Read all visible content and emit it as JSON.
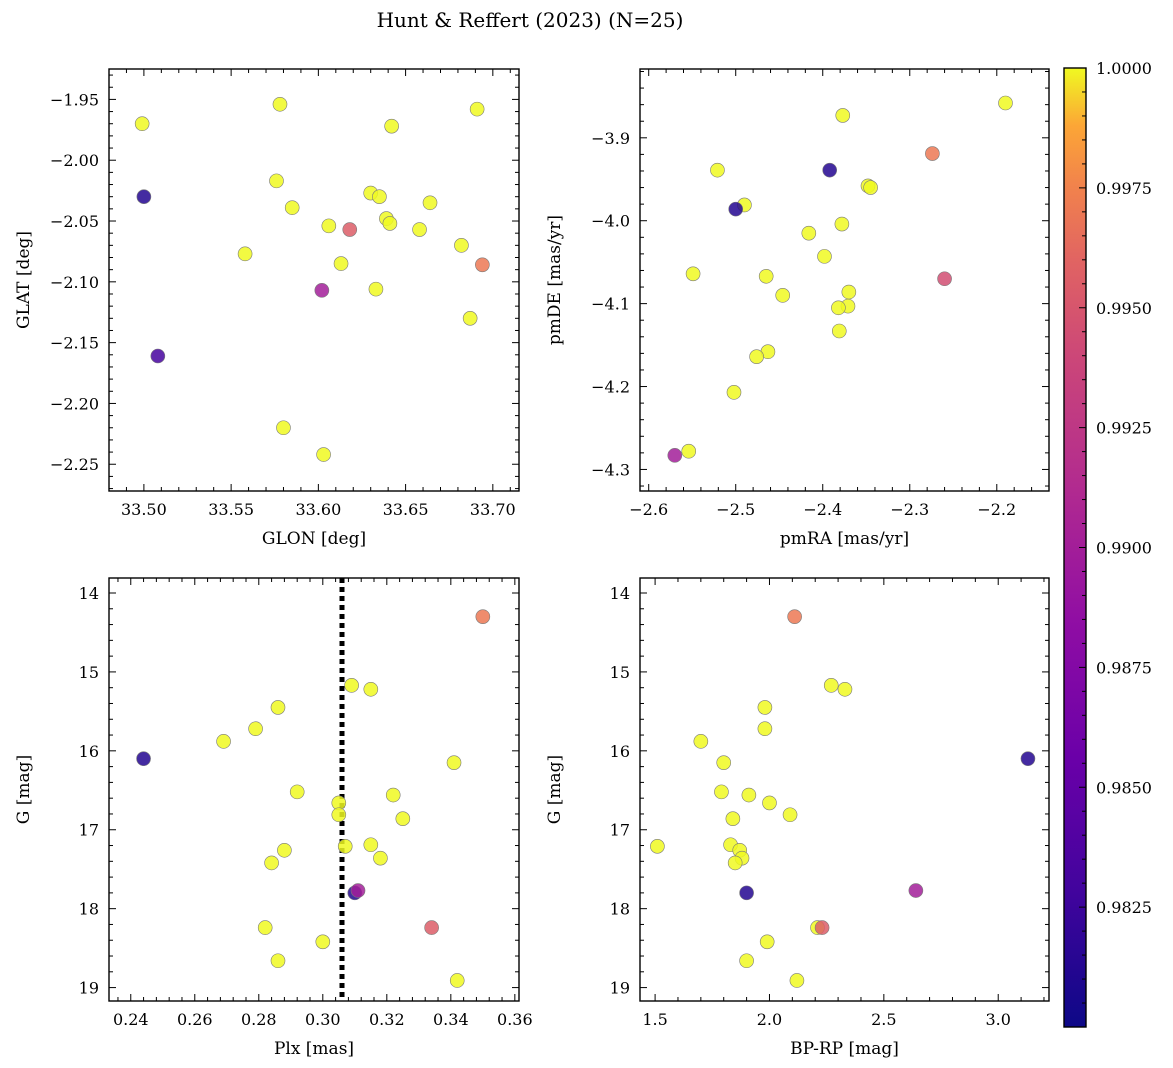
{
  "title": "Hunt & Reffert (2023) (N=25)",
  "colorbar": {
    "min": 0.98,
    "max": 1.0,
    "ticks": [
      0.9825,
      0.985,
      0.9875,
      0.99,
      0.9925,
      0.995,
      0.9975,
      1.0
    ],
    "tick_labels": [
      "0.9825",
      "0.9850",
      "0.9875",
      "0.9900",
      "0.9925",
      "0.9950",
      "0.9975",
      "1.0000"
    ],
    "colormap": "plasma"
  },
  "chart_data": [
    {
      "type": "scatter",
      "xlabel": "GLON [deg]",
      "ylabel": "GLAT [deg]",
      "xlim": [
        33.48,
        33.715
      ],
      "ylim": [
        -2.272,
        -1.925
      ],
      "x_ticks": [
        33.5,
        33.55,
        33.6,
        33.65,
        33.7
      ],
      "x_tick_labels": [
        "33.50",
        "33.55",
        "33.60",
        "33.65",
        "33.70"
      ],
      "y_ticks": [
        -1.95,
        -2.0,
        -2.05,
        -2.1,
        -2.15,
        -2.2,
        -2.25
      ],
      "y_tick_labels": [
        "−1.95",
        "−2.00",
        "−2.05",
        "−2.10",
        "−2.15",
        "−2.20",
        "−2.25"
      ],
      "points": [
        {
          "x": 33.499,
          "y": -1.97,
          "c": 1.0
        },
        {
          "x": 33.5,
          "y": -2.03,
          "c": 0.9812
        },
        {
          "x": 33.508,
          "y": -2.161,
          "c": 0.9832
        },
        {
          "x": 33.558,
          "y": -2.077,
          "c": 1.0
        },
        {
          "x": 33.576,
          "y": -2.017,
          "c": 1.0
        },
        {
          "x": 33.578,
          "y": -1.954,
          "c": 1.0
        },
        {
          "x": 33.58,
          "y": -2.22,
          "c": 1.0
        },
        {
          "x": 33.585,
          "y": -2.039,
          "c": 1.0
        },
        {
          "x": 33.602,
          "y": -2.107,
          "c": 0.99
        },
        {
          "x": 33.603,
          "y": -2.242,
          "c": 1.0
        },
        {
          "x": 33.606,
          "y": -2.054,
          "c": 1.0
        },
        {
          "x": 33.613,
          "y": -2.085,
          "c": 1.0
        },
        {
          "x": 33.618,
          "y": -2.057,
          "c": 0.9955
        },
        {
          "x": 33.63,
          "y": -2.027,
          "c": 1.0
        },
        {
          "x": 33.633,
          "y": -2.106,
          "c": 1.0
        },
        {
          "x": 33.635,
          "y": -2.03,
          "c": 1.0
        },
        {
          "x": 33.639,
          "y": -2.048,
          "c": 1.0
        },
        {
          "x": 33.641,
          "y": -2.052,
          "c": 1.0
        },
        {
          "x": 33.642,
          "y": -1.972,
          "c": 1.0
        },
        {
          "x": 33.658,
          "y": -2.057,
          "c": 1.0
        },
        {
          "x": 33.664,
          "y": -2.035,
          "c": 1.0
        },
        {
          "x": 33.682,
          "y": -2.07,
          "c": 1.0
        },
        {
          "x": 33.687,
          "y": -2.13,
          "c": 1.0
        },
        {
          "x": 33.691,
          "y": -1.958,
          "c": 1.0
        },
        {
          "x": 33.694,
          "y": -2.086,
          "c": 0.997
        }
      ]
    },
    {
      "type": "scatter",
      "xlabel": "pmRA [mas/yr]",
      "ylabel": "pmDE [mas/yr]",
      "xlim": [
        -2.61,
        -2.14
      ],
      "ylim": [
        -4.326,
        -3.817
      ],
      "x_ticks": [
        -2.6,
        -2.5,
        -2.4,
        -2.3,
        -2.2
      ],
      "x_tick_labels": [
        "−2.6",
        "−2.5",
        "−2.4",
        "−2.3",
        "−2.2"
      ],
      "y_ticks": [
        -3.9,
        -4.0,
        -4.1,
        -4.2,
        -4.3
      ],
      "y_tick_labels": [
        "−3.9",
        "−4.0",
        "−4.1",
        "−4.2",
        "−4.3"
      ],
      "points": [
        {
          "x": -2.19,
          "y": -3.858,
          "c": 1.0
        },
        {
          "x": -2.274,
          "y": -3.919,
          "c": 0.997
        },
        {
          "x": -2.26,
          "y": -4.07,
          "c": 0.9945
        },
        {
          "x": -2.377,
          "y": -3.873,
          "c": 1.0
        },
        {
          "x": -2.392,
          "y": -3.939,
          "c": 0.9812
        },
        {
          "x": -2.348,
          "y": -3.958,
          "c": 1.0
        },
        {
          "x": -2.345,
          "y": -3.96,
          "c": 1.0
        },
        {
          "x": -2.378,
          "y": -4.004,
          "c": 1.0
        },
        {
          "x": -2.416,
          "y": -4.015,
          "c": 1.0
        },
        {
          "x": -2.398,
          "y": -4.043,
          "c": 1.0
        },
        {
          "x": -2.37,
          "y": -4.086,
          "c": 1.0
        },
        {
          "x": -2.371,
          "y": -4.103,
          "c": 1.0
        },
        {
          "x": -2.382,
          "y": -4.105,
          "c": 1.0
        },
        {
          "x": -2.381,
          "y": -4.133,
          "c": 1.0
        },
        {
          "x": -2.521,
          "y": -3.939,
          "c": 1.0
        },
        {
          "x": -2.49,
          "y": -3.981,
          "c": 1.0
        },
        {
          "x": -2.5,
          "y": -3.986,
          "c": 0.9812
        },
        {
          "x": -2.549,
          "y": -4.064,
          "c": 1.0
        },
        {
          "x": -2.465,
          "y": -4.067,
          "c": 1.0
        },
        {
          "x": -2.446,
          "y": -4.09,
          "c": 1.0
        },
        {
          "x": -2.463,
          "y": -4.158,
          "c": 1.0
        },
        {
          "x": -2.476,
          "y": -4.164,
          "c": 1.0
        },
        {
          "x": -2.502,
          "y": -4.207,
          "c": 1.0
        },
        {
          "x": -2.554,
          "y": -4.278,
          "c": 1.0
        },
        {
          "x": -2.57,
          "y": -4.283,
          "c": 0.99
        }
      ]
    },
    {
      "type": "scatter",
      "xlabel": "Plx [mas]",
      "ylabel": "G [mag]",
      "xlim": [
        0.2332,
        0.3613
      ],
      "ylim": [
        19.17,
        13.81
      ],
      "y_inverted": true,
      "x_ticks": [
        0.24,
        0.26,
        0.28,
        0.3,
        0.32,
        0.34,
        0.36
      ],
      "x_tick_labels": [
        "0.24",
        "0.26",
        "0.28",
        "0.30",
        "0.32",
        "0.34",
        "0.36"
      ],
      "y_ticks": [
        14,
        15,
        16,
        17,
        18,
        19
      ],
      "y_tick_labels": [
        "14",
        "15",
        "16",
        "17",
        "18",
        "19"
      ],
      "vline": {
        "x": 0.306,
        "style": "dotted",
        "color": "#000000"
      },
      "points": [
        {
          "x": 0.35,
          "y": 14.3,
          "c": 0.997
        },
        {
          "x": 0.244,
          "y": 16.1,
          "c": 0.9812
        },
        {
          "x": 0.269,
          "y": 15.88,
          "c": 1.0
        },
        {
          "x": 0.279,
          "y": 15.72,
          "c": 1.0
        },
        {
          "x": 0.286,
          "y": 15.45,
          "c": 1.0
        },
        {
          "x": 0.292,
          "y": 16.52,
          "c": 1.0
        },
        {
          "x": 0.309,
          "y": 15.17,
          "c": 1.0
        },
        {
          "x": 0.315,
          "y": 15.22,
          "c": 1.0
        },
        {
          "x": 0.341,
          "y": 16.15,
          "c": 1.0
        },
        {
          "x": 0.322,
          "y": 16.56,
          "c": 1.0
        },
        {
          "x": 0.305,
          "y": 16.66,
          "c": 1.0
        },
        {
          "x": 0.305,
          "y": 16.81,
          "c": 1.0
        },
        {
          "x": 0.325,
          "y": 16.86,
          "c": 1.0
        },
        {
          "x": 0.288,
          "y": 17.26,
          "c": 1.0
        },
        {
          "x": 0.284,
          "y": 17.42,
          "c": 1.0
        },
        {
          "x": 0.307,
          "y": 17.21,
          "c": 1.0
        },
        {
          "x": 0.315,
          "y": 17.19,
          "c": 1.0
        },
        {
          "x": 0.318,
          "y": 17.36,
          "c": 1.0
        },
        {
          "x": 0.31,
          "y": 17.8,
          "c": 0.9812
        },
        {
          "x": 0.311,
          "y": 17.77,
          "c": 0.99
        },
        {
          "x": 0.282,
          "y": 18.24,
          "c": 1.0
        },
        {
          "x": 0.3,
          "y": 18.42,
          "c": 1.0
        },
        {
          "x": 0.286,
          "y": 18.66,
          "c": 1.0
        },
        {
          "x": 0.334,
          "y": 18.24,
          "c": 0.9955
        },
        {
          "x": 0.342,
          "y": 18.91,
          "c": 1.0
        }
      ]
    },
    {
      "type": "scatter",
      "xlabel": "BP-RP [mag]",
      "ylabel": "G [mag]",
      "xlim": [
        1.434,
        3.222
      ],
      "ylim": [
        19.17,
        13.81
      ],
      "y_inverted": true,
      "x_ticks": [
        1.5,
        2.0,
        2.5,
        3.0
      ],
      "x_tick_labels": [
        "1.5",
        "2.0",
        "2.5",
        "3.0"
      ],
      "y_ticks": [
        14,
        15,
        16,
        17,
        18,
        19
      ],
      "y_tick_labels": [
        "14",
        "15",
        "16",
        "17",
        "18",
        "19"
      ],
      "points": [
        {
          "x": 2.11,
          "y": 14.3,
          "c": 0.997
        },
        {
          "x": 2.27,
          "y": 15.17,
          "c": 1.0
        },
        {
          "x": 2.33,
          "y": 15.22,
          "c": 1.0
        },
        {
          "x": 1.98,
          "y": 15.45,
          "c": 1.0
        },
        {
          "x": 1.98,
          "y": 15.72,
          "c": 1.0
        },
        {
          "x": 1.7,
          "y": 15.88,
          "c": 1.0
        },
        {
          "x": 1.8,
          "y": 16.15,
          "c": 1.0
        },
        {
          "x": 3.13,
          "y": 16.1,
          "c": 0.9812
        },
        {
          "x": 1.79,
          "y": 16.52,
          "c": 1.0
        },
        {
          "x": 1.91,
          "y": 16.56,
          "c": 1.0
        },
        {
          "x": 2.0,
          "y": 16.66,
          "c": 1.0
        },
        {
          "x": 2.09,
          "y": 16.81,
          "c": 1.0
        },
        {
          "x": 1.84,
          "y": 16.86,
          "c": 1.0
        },
        {
          "x": 1.51,
          "y": 17.21,
          "c": 1.0
        },
        {
          "x": 1.83,
          "y": 17.19,
          "c": 1.0
        },
        {
          "x": 1.87,
          "y": 17.26,
          "c": 1.0
        },
        {
          "x": 1.88,
          "y": 17.36,
          "c": 1.0
        },
        {
          "x": 1.85,
          "y": 17.42,
          "c": 1.0
        },
        {
          "x": 1.9,
          "y": 17.8,
          "c": 0.9812
        },
        {
          "x": 2.64,
          "y": 17.77,
          "c": 0.99
        },
        {
          "x": 2.21,
          "y": 18.24,
          "c": 1.0
        },
        {
          "x": 2.23,
          "y": 18.24,
          "c": 0.9955
        },
        {
          "x": 1.99,
          "y": 18.42,
          "c": 1.0
        },
        {
          "x": 1.9,
          "y": 18.66,
          "c": 1.0
        },
        {
          "x": 2.12,
          "y": 18.91,
          "c": 1.0
        }
      ]
    }
  ]
}
